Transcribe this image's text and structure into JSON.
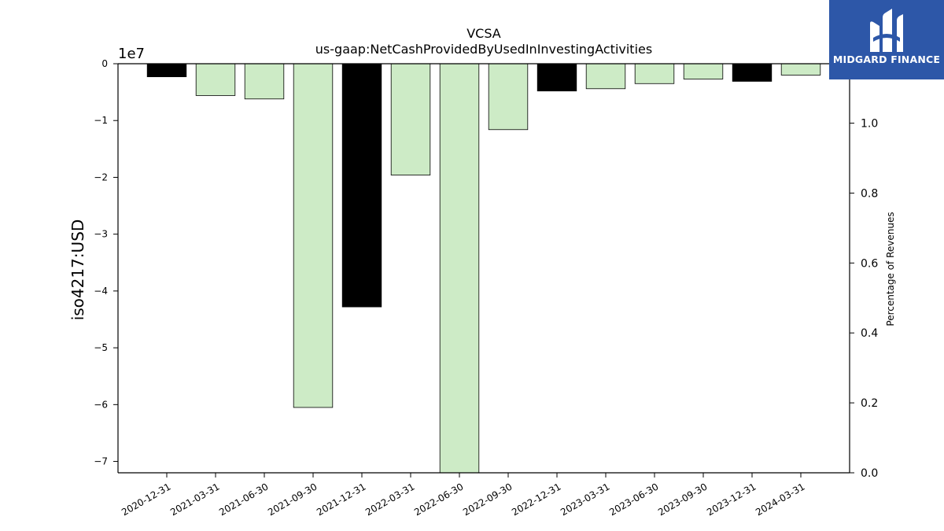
{
  "chart_data": {
    "type": "bar",
    "title": "VCSA",
    "subtitle": "us-gaap:NetCashProvidedByUsedInInvestingActivities",
    "ylabel": "iso4217:USD",
    "y_multiplier_label": "1e7",
    "y2label": "Percentage of Revenues",
    "ylim": [
      -7.2,
      0
    ],
    "y2lim": [
      0,
      1.17
    ],
    "y_ticks": [
      "0",
      "−1",
      "−2",
      "−3",
      "−4",
      "−5",
      "−6",
      "−7"
    ],
    "y_tick_values": [
      0,
      -1,
      -2,
      -3,
      -4,
      -5,
      -6,
      -7
    ],
    "y2_ticks": [
      "0.0",
      "0.2",
      "0.4",
      "0.6",
      "0.8",
      "1.0"
    ],
    "y2_tick_values": [
      0.0,
      0.2,
      0.4,
      0.6,
      0.8,
      1.0
    ],
    "grid": false,
    "categories": [
      "2020-12-31",
      "2021-03-31",
      "2021-06-30",
      "2021-09-30",
      "2021-12-31",
      "2022-03-31",
      "2022-06-30",
      "2022-09-30",
      "2022-12-31",
      "2023-03-31",
      "2023-06-30",
      "2023-09-30",
      "2023-12-31",
      "2024-03-31"
    ],
    "values": [
      -0.23,
      -0.56,
      -0.62,
      -6.05,
      -4.28,
      -1.96,
      -7.2,
      -1.16,
      -0.48,
      -0.44,
      -0.35,
      -0.27,
      -0.31,
      -0.2
    ],
    "colors": [
      "#000000",
      "#cdebc6",
      "#cdebc6",
      "#cdebc6",
      "#000000",
      "#cdebc6",
      "#cdebc6",
      "#cdebc6",
      "#000000",
      "#cdebc6",
      "#cdebc6",
      "#cdebc6",
      "#000000",
      "#cdebc6"
    ]
  },
  "logo": {
    "text": "MIDGARD FINANCE",
    "background": "#2d57a8"
  }
}
